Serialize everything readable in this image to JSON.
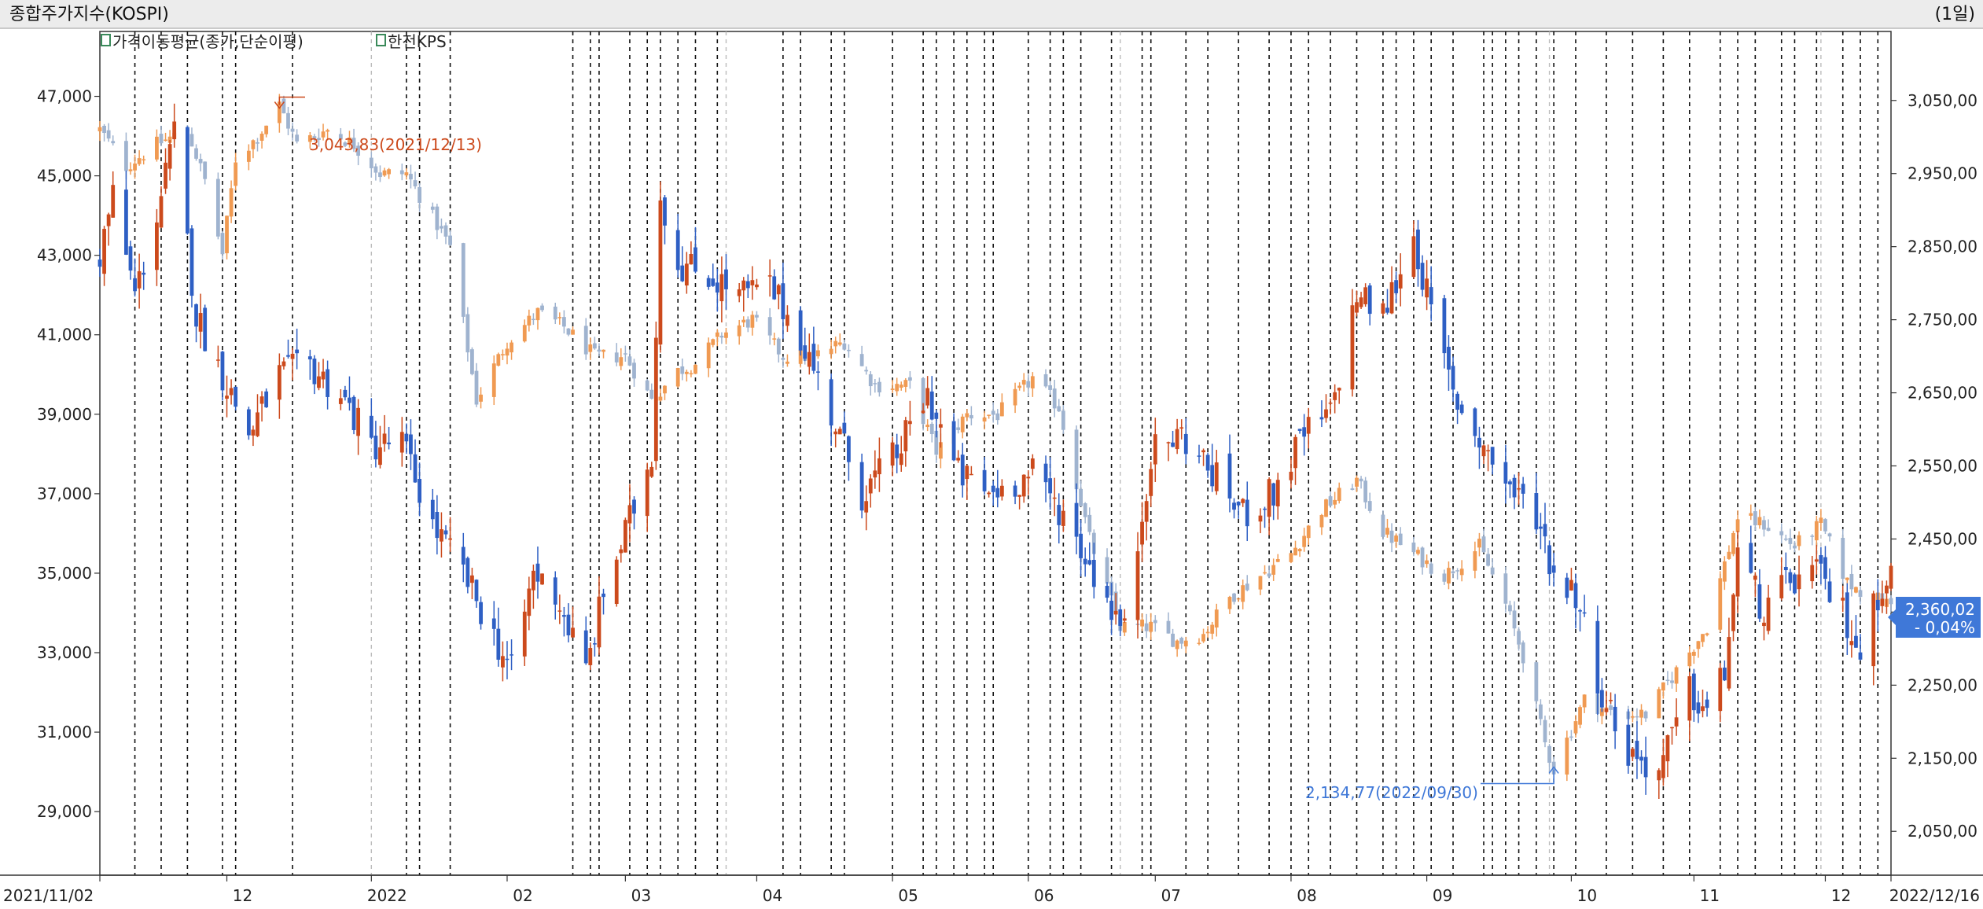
{
  "window": {
    "title": "종합주가지수(KOSPI)",
    "interval": "(1일)"
  },
  "legend": [
    {
      "label": "가격이동평균(종가,단순이평)",
      "icon": "checkbox-icon"
    },
    {
      "label": "한전KPS",
      "icon": "checkbox-icon"
    }
  ],
  "colors": {
    "up": "#cc4a1c",
    "down": "#2e5fc4",
    "kospi_up": "#f09a52",
    "kospi_down": "#9fb3cf",
    "highlight": "#3f78d8"
  },
  "chart_data": {
    "type": "candlestick",
    "x_range": [
      "2021/11/02",
      "2022/12/16"
    ],
    "x_tick_labels": [
      "2021/11/02",
      "12",
      "2022",
      "02",
      "03",
      "04",
      "05",
      "06",
      "07",
      "08",
      "09",
      "10",
      "11",
      "12",
      "2022/12/16"
    ],
    "left_axis": {
      "ylim": [
        27400,
        48000
      ],
      "ticks": [
        "47,000",
        "45,000",
        "43,000",
        "41,000",
        "39,000",
        "37,000",
        "35,000",
        "33,000",
        "31,000",
        "29,000"
      ]
    },
    "right_axis": {
      "ylim": [
        1990,
        3110
      ],
      "ticks": [
        "3,050,00",
        "2,950,00",
        "2,850,00",
        "2,750,00",
        "2,650,00",
        "2,550,00",
        "2,450,00",
        "2,350,00",
        "2,250,00",
        "2,150,00",
        "2,050,00"
      ]
    },
    "series": [
      {
        "name": "한전KPS",
        "axis": "left",
        "anchors": [
          [
            "2021/11/02",
            43000
          ],
          [
            "2021/11/05",
            44500
          ],
          [
            "2021/11/10",
            42000
          ],
          [
            "2021/11/15",
            44000
          ],
          [
            "2021/11/19",
            46000
          ],
          [
            "2021/11/24",
            41500
          ],
          [
            "2021/11/30",
            40000
          ],
          [
            "2021/12/06",
            38500
          ],
          [
            "2021/12/13",
            40000
          ],
          [
            "2021/12/20",
            40200
          ],
          [
            "2021/12/27",
            39500
          ],
          [
            "2022/01/03",
            38200
          ],
          [
            "2022/01/10",
            38300
          ],
          [
            "2022/01/17",
            36200
          ],
          [
            "2022/01/24",
            35000
          ],
          [
            "2022/01/31",
            33400
          ],
          [
            "2022/02/04",
            32500
          ],
          [
            "2022/02/09",
            35000
          ],
          [
            "2022/02/14",
            34500
          ],
          [
            "2022/02/21",
            32500
          ],
          [
            "2022/02/25",
            34500
          ],
          [
            "2022/03/02",
            36000
          ],
          [
            "2022/03/08",
            38000
          ],
          [
            "2022/03/10",
            44500
          ],
          [
            "2022/03/14",
            42800
          ],
          [
            "2022/03/21",
            42500
          ],
          [
            "2022/03/28",
            42000
          ],
          [
            "2022/04/04",
            42200
          ],
          [
            "2022/04/11",
            41000
          ],
          [
            "2022/04/18",
            39000
          ],
          [
            "2022/04/25",
            37000
          ],
          [
            "2022/05/03",
            38000
          ],
          [
            "2022/05/10",
            39500
          ],
          [
            "2022/05/17",
            37500
          ],
          [
            "2022/05/24",
            37000
          ],
          [
            "2022/06/03",
            37500
          ],
          [
            "2022/06/10",
            36500
          ],
          [
            "2022/06/17",
            35000
          ],
          [
            "2022/06/24",
            33500
          ],
          [
            "2022/06/30",
            38000
          ],
          [
            "2022/07/07",
            38500
          ],
          [
            "2022/07/14",
            37500
          ],
          [
            "2022/07/21",
            36500
          ],
          [
            "2022/07/28",
            37000
          ],
          [
            "2022/08/04",
            38500
          ],
          [
            "2022/08/10",
            39000
          ],
          [
            "2022/08/16",
            42000
          ],
          [
            "2022/08/22",
            41500
          ],
          [
            "2022/08/29",
            43500
          ],
          [
            "2022/09/02",
            41500
          ],
          [
            "2022/09/07",
            39500
          ],
          [
            "2022/09/15",
            38000
          ],
          [
            "2022/09/21",
            37000
          ],
          [
            "2022/09/26",
            36500
          ],
          [
            "2022/09/30",
            35000
          ],
          [
            "2022/10/05",
            34500
          ],
          [
            "2022/10/11",
            32000
          ],
          [
            "2022/10/17",
            30500
          ],
          [
            "2022/10/24",
            30000
          ],
          [
            "2022/10/31",
            32000
          ],
          [
            "2022/11/04",
            31500
          ],
          [
            "2022/11/08",
            32500
          ],
          [
            "2022/11/11",
            35500
          ],
          [
            "2022/11/17",
            34000
          ],
          [
            "2022/11/23",
            34800
          ],
          [
            "2022/11/29",
            35000
          ],
          [
            "2022/12/05",
            34000
          ],
          [
            "2022/12/09",
            33000
          ],
          [
            "2022/12/14",
            34800
          ],
          [
            "2022/12/16",
            35000
          ]
        ]
      },
      {
        "name": "종합주가지수(KOSPI)",
        "axis": "right",
        "anchors": [
          [
            "2021/11/02",
            3010
          ],
          [
            "2021/11/08",
            2960
          ],
          [
            "2021/11/15",
            2990
          ],
          [
            "2021/11/22",
            3010
          ],
          [
            "2021/11/26",
            2940
          ],
          [
            "2021/11/30",
            2840
          ],
          [
            "2021/12/03",
            2970
          ],
          [
            "2021/12/08",
            3000
          ],
          [
            "2021/12/13",
            3043.83
          ],
          [
            "2021/12/17",
            2990
          ],
          [
            "2021/12/24",
            3010
          ],
          [
            "2021/12/30",
            2990
          ],
          [
            "2022/01/05",
            2950
          ],
          [
            "2022/01/11",
            2950
          ],
          [
            "2022/01/17",
            2890
          ],
          [
            "2022/01/21",
            2850
          ],
          [
            "2022/01/27",
            2640
          ],
          [
            "2022/02/03",
            2720
          ],
          [
            "2022/02/10",
            2760
          ],
          [
            "2022/02/16",
            2740
          ],
          [
            "2022/02/23",
            2700
          ],
          [
            "2022/03/02",
            2700
          ],
          [
            "2022/03/08",
            2640
          ],
          [
            "2022/03/14",
            2680
          ],
          [
            "2022/03/18",
            2690
          ],
          [
            "2022/03/24",
            2730
          ],
          [
            "2022/03/31",
            2750
          ],
          [
            "2022/04/07",
            2700
          ],
          [
            "2022/04/14",
            2700
          ],
          [
            "2022/04/21",
            2720
          ],
          [
            "2022/04/28",
            2660
          ],
          [
            "2022/05/06",
            2660
          ],
          [
            "2022/05/12",
            2570
          ],
          [
            "2022/05/19",
            2620
          ],
          [
            "2022/05/26",
            2620
          ],
          [
            "2022/06/03",
            2670
          ],
          [
            "2022/06/09",
            2630
          ],
          [
            "2022/06/16",
            2450
          ],
          [
            "2022/06/23",
            2330
          ],
          [
            "2022/06/30",
            2330
          ],
          [
            "2022/07/06",
            2310
          ],
          [
            "2022/07/12",
            2320
          ],
          [
            "2022/07/18",
            2370
          ],
          [
            "2022/07/25",
            2400
          ],
          [
            "2022/08/01",
            2430
          ],
          [
            "2022/08/08",
            2490
          ],
          [
            "2022/08/16",
            2530
          ],
          [
            "2022/08/22",
            2460
          ],
          [
            "2022/08/29",
            2430
          ],
          [
            "2022/09/05",
            2400
          ],
          [
            "2022/09/13",
            2440
          ],
          [
            "2022/09/19",
            2360
          ],
          [
            "2022/09/23",
            2290
          ],
          [
            "2022/09/28",
            2170
          ],
          [
            "2022/09/30",
            2134.77
          ],
          [
            "2022/10/07",
            2230
          ],
          [
            "2022/10/14",
            2210
          ],
          [
            "2022/10/21",
            2210
          ],
          [
            "2022/10/28",
            2270
          ],
          [
            "2022/11/04",
            2330
          ],
          [
            "2022/11/11",
            2480
          ],
          [
            "2022/11/17",
            2470
          ],
          [
            "2022/11/24",
            2440
          ],
          [
            "2022/11/30",
            2470
          ],
          [
            "2022/12/06",
            2390
          ],
          [
            "2022/12/12",
            2370
          ],
          [
            "2022/12/16",
            2360.02
          ]
        ]
      }
    ],
    "annotations": {
      "max": {
        "text": "3,043,83(2021/12/13)"
      },
      "min": {
        "text": "2,134,77(2022/09/30)"
      },
      "last_price": {
        "price": "2,360,02",
        "change": "- 0,04%"
      }
    },
    "event_lines_solid": [
      "2021/11/10",
      "2021/11/16",
      "2021/11/22",
      "2021/11/30",
      "2021/12/03",
      "2021/12/16",
      "2022/01/11",
      "2022/01/14",
      "2022/01/21",
      "2022/02/18",
      "2022/02/22",
      "2022/02/24",
      "2022/03/03",
      "2022/03/07",
      "2022/03/10",
      "2022/03/14",
      "2022/03/18",
      "2022/03/23",
      "2022/04/07",
      "2022/04/11",
      "2022/04/18",
      "2022/04/21",
      "2022/05/02",
      "2022/05/09",
      "2022/05/12",
      "2022/05/16",
      "2022/05/19",
      "2022/05/23",
      "2022/05/25",
      "2022/06/02",
      "2022/06/07",
      "2022/06/10",
      "2022/06/14",
      "2022/06/21",
      "2022/06/28",
      "2022/06/30",
      "2022/07/08",
      "2022/07/13",
      "2022/07/20",
      "2022/07/27",
      "2022/08/01",
      "2022/08/05",
      "2022/08/10",
      "2022/08/16",
      "2022/08/22",
      "2022/08/25",
      "2022/08/29",
      "2022/09/02",
      "2022/09/07",
      "2022/09/14",
      "2022/09/16",
      "2022/09/19",
      "2022/09/22",
      "2022/09/26",
      "2022/09/30",
      "2022/10/05",
      "2022/10/12",
      "2022/10/18",
      "2022/10/25",
      "2022/10/31",
      "2022/11/07",
      "2022/11/11",
      "2022/11/15",
      "2022/11/21",
      "2022/11/24",
      "2022/11/29",
      "2022/12/05",
      "2022/12/09",
      "2022/12/13"
    ],
    "event_lines_light": [
      "2022/01/03",
      "2022/03/25",
      "2022/06/23",
      "2022/09/29",
      "2022/11/30"
    ]
  }
}
